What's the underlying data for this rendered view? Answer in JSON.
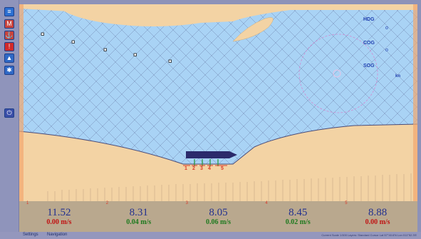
{
  "colors": {
    "water": "#a9d3f5",
    "land": "#f3d3a4",
    "land_edge": "#4a4c78",
    "grid": "#6c7aa6",
    "vessel": "#2b2a6b",
    "mooring": "#1f9a33",
    "mooring_label": "#d83b2b",
    "panel_bg": "#b9a88e",
    "value_text": "#23318f",
    "speed_red": "#c01414",
    "speed_green": "#1f7a1f",
    "compass": "#d08ad0"
  },
  "sidebar": {
    "tools": [
      {
        "icon": "layers-icon",
        "color": "#2c6fd1"
      },
      {
        "icon": "map-red-icon",
        "color": "#c8433c"
      },
      {
        "icon": "anchor-red-icon",
        "color": "#c8433c"
      },
      {
        "icon": "alarm-red-icon",
        "color": "#d12a2a"
      },
      {
        "icon": "ship-icon",
        "color": "#2f69c6"
      },
      {
        "icon": "settings-blue-icon",
        "color": "#2f69c6"
      },
      {
        "icon": "power-icon",
        "color": "#3a4ea8"
      }
    ]
  },
  "instruments": {
    "hdg_label": "HDG",
    "cog_label": "COG",
    "sog_label": "SOG",
    "hdg_value": "o",
    "cog_value": "o",
    "sog_unit": "kn"
  },
  "moorings": {
    "labels": [
      "1",
      "2",
      "3",
      "4",
      "5"
    ],
    "lines": [
      {
        "index": "1",
        "value": "11.52",
        "speed": "0.00 m/s",
        "status": "red"
      },
      {
        "index": "2",
        "value": "8.31",
        "speed": "0.04 m/s",
        "status": "green"
      },
      {
        "index": "3",
        "value": "8.05",
        "speed": "0.06 m/s",
        "status": "green"
      },
      {
        "index": "4",
        "value": "8.45",
        "speed": "0.02 m/s",
        "status": "green"
      },
      {
        "index": "5",
        "value": "8.88",
        "speed": "0.00 m/s",
        "status": "red"
      }
    ]
  },
  "statusbar": {
    "settings": "Settings",
    "navigation": "Navigation",
    "right_text": "Current Scale 1:500  Layers: Standard  Cursor Lat 57°40.6'N Lon 011°52.3'E"
  }
}
